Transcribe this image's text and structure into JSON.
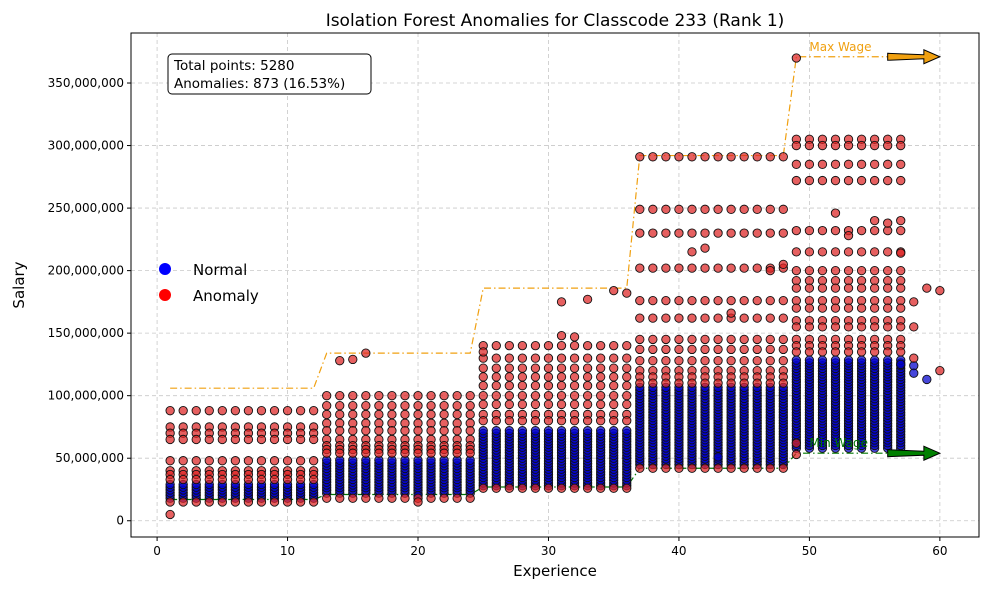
{
  "chart_data": {
    "type": "scatter",
    "title": "Isolation Forest Anomalies for Classcode 233 (Rank 1)",
    "xlabel": "Experience",
    "ylabel": "Salary",
    "xlim": [
      -2,
      63
    ],
    "ylim": [
      -13000000,
      390000000
    ],
    "xticks": [
      0,
      10,
      20,
      30,
      40,
      50,
      60
    ],
    "yticks": [
      0,
      50000000,
      100000000,
      150000000,
      200000000,
      250000000,
      300000000,
      350000000
    ],
    "ytick_labels": [
      "0",
      "50,000,000",
      "100,000,000",
      "150,000,000",
      "200,000,000",
      "250,000,000",
      "300,000,000",
      "350,000,000"
    ],
    "grid": true,
    "legend_position": "center-left",
    "colors": {
      "normal": "#0000cc",
      "anomaly": "#dd2222",
      "max_wage": "#f0a010",
      "min_wage": "#007700"
    },
    "legend": [
      {
        "label": "Normal",
        "color": "#0000ff"
      },
      {
        "label": "Anomaly",
        "color": "#ff0000"
      }
    ],
    "info_box": {
      "line1": "Total points: 5280",
      "line2": "Anomalies: 873 (16.53%)"
    },
    "max_wage": {
      "label": "Max Wage",
      "steps": [
        {
          "x0": 1,
          "x1": 12,
          "y": 106000000
        },
        {
          "x0": 13,
          "x1": 24,
          "y": 134000000
        },
        {
          "x0": 25,
          "x1": 36,
          "y": 186000000
        },
        {
          "x0": 37,
          "x1": 48,
          "y": 292000000
        },
        {
          "x0": 49,
          "x1": 57,
          "y": 371000000
        }
      ],
      "arrow": {
        "from_x": 56,
        "to_x": 60,
        "y": 371000000
      }
    },
    "min_wage": {
      "label": "Min Wage",
      "steps": [
        {
          "x0": 1,
          "x1": 12,
          "y": 17000000
        },
        {
          "x0": 13,
          "x1": 24,
          "y": 21000000
        },
        {
          "x0": 25,
          "x1": 36,
          "y": 27000000
        },
        {
          "x0": 37,
          "x1": 48,
          "y": 42000000
        },
        {
          "x0": 49,
          "x1": 57,
          "y": 54000000
        }
      ],
      "arrow": {
        "from_x": 56,
        "to_x": 60,
        "y": 54000000
      }
    },
    "normal_bands": [
      {
        "x0": 1,
        "x1": 12,
        "low": 18000000,
        "high": 31000000
      },
      {
        "x0": 13,
        "x1": 24,
        "low": 22000000,
        "high": 50000000
      },
      {
        "x0": 25,
        "x1": 36,
        "low": 28000000,
        "high": 73000000
      },
      {
        "x0": 37,
        "x1": 48,
        "low": 45000000,
        "high": 107000000
      },
      {
        "x0": 49,
        "x1": 57,
        "low": 58000000,
        "high": 130000000
      }
    ],
    "normal_extra": [
      {
        "x": 57,
        "y": 125000000
      },
      {
        "x": 58,
        "y": 124000000
      },
      {
        "x": 58,
        "y": 118000000
      },
      {
        "x": 59,
        "y": 113000000
      },
      {
        "x": 43,
        "y": 51000000
      },
      {
        "x": 20,
        "y": 20000000
      }
    ],
    "anomaly_rows": [
      {
        "x0": 1,
        "x1": 12,
        "ys": [
          88000000,
          75000000,
          70000000,
          65000000,
          48000000,
          40000000,
          37000000,
          33000000,
          15000000
        ]
      },
      {
        "x0": 13,
        "x1": 24,
        "ys": [
          100000000,
          92000000,
          85000000,
          78000000,
          72000000,
          65000000,
          60000000,
          57000000,
          54000000,
          18000000
        ]
      },
      {
        "x0": 25,
        "x1": 36,
        "ys": [
          140000000,
          130000000,
          122000000,
          115000000,
          108000000,
          100000000,
          93000000,
          85000000,
          80000000,
          26000000
        ]
      },
      {
        "x0": 37,
        "x1": 48,
        "ys": [
          291000000,
          249000000,
          230000000,
          202000000,
          176000000,
          162000000,
          145000000,
          137000000,
          128000000,
          120000000,
          115000000,
          110000000,
          42000000
        ]
      },
      {
        "x0": 49,
        "x1": 57,
        "ys": [
          305000000,
          300000000,
          285000000,
          272000000,
          232000000,
          215000000,
          200000000,
          192000000,
          186000000,
          176000000,
          170000000,
          160000000,
          155000000,
          145000000,
          140000000,
          135000000
        ]
      }
    ],
    "anomaly_extra": [
      {
        "x": 1,
        "y": 5000000
      },
      {
        "x": 14,
        "y": 128000000
      },
      {
        "x": 15,
        "y": 129000000
      },
      {
        "x": 16,
        "y": 134000000
      },
      {
        "x": 25,
        "y": 135000000
      },
      {
        "x": 31,
        "y": 148000000
      },
      {
        "x": 32,
        "y": 147000000
      },
      {
        "x": 31,
        "y": 175000000
      },
      {
        "x": 33,
        "y": 177000000
      },
      {
        "x": 35,
        "y": 184000000
      },
      {
        "x": 36,
        "y": 182000000
      },
      {
        "x": 41,
        "y": 215000000
      },
      {
        "x": 42,
        "y": 218000000
      },
      {
        "x": 44,
        "y": 166000000
      },
      {
        "x": 47,
        "y": 200000000
      },
      {
        "x": 48,
        "y": 205000000
      },
      {
        "x": 49,
        "y": 370000000
      },
      {
        "x": 49,
        "y": 53000000
      },
      {
        "x": 49,
        "y": 62000000
      },
      {
        "x": 52,
        "y": 246000000
      },
      {
        "x": 53,
        "y": 228000000
      },
      {
        "x": 55,
        "y": 240000000
      },
      {
        "x": 56,
        "y": 238000000
      },
      {
        "x": 57,
        "y": 240000000
      },
      {
        "x": 57,
        "y": 214000000
      },
      {
        "x": 58,
        "y": 175000000
      },
      {
        "x": 58,
        "y": 130000000
      },
      {
        "x": 58,
        "y": 155000000
      },
      {
        "x": 59,
        "y": 186000000
      },
      {
        "x": 60,
        "y": 184000000
      },
      {
        "x": 60,
        "y": 120000000
      },
      {
        "x": 20,
        "y": 15000000
      }
    ]
  }
}
